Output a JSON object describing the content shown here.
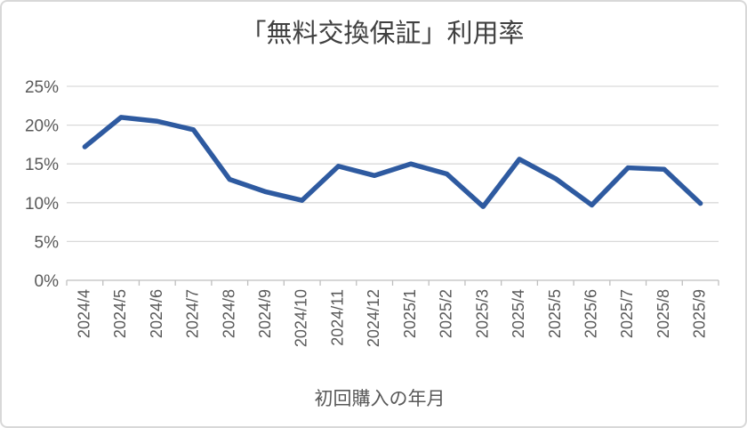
{
  "card": {
    "background": "#ffffff",
    "border_color": "#d8d8d8"
  },
  "chart_data": {
    "type": "line",
    "title": "「無料交換保証」利用率",
    "xlabel": "初回購入の年月",
    "ylabel": "",
    "categories": [
      "2024/4",
      "2024/5",
      "2024/6",
      "2024/7",
      "2024/8",
      "2024/9",
      "2024/10",
      "2024/11",
      "2024/12",
      "2025/1",
      "2025/2",
      "2025/3",
      "2025/4",
      "2025/5",
      "2025/6",
      "2025/7",
      "2025/8",
      "2025/9"
    ],
    "series": [
      {
        "name": "利用率",
        "values": [
          17.2,
          21.0,
          20.5,
          19.4,
          13.0,
          11.4,
          10.3,
          14.7,
          13.5,
          15.0,
          13.7,
          9.5,
          15.6,
          13.1,
          9.7,
          14.5,
          14.3,
          9.9
        ]
      }
    ],
    "ylim": [
      0,
      25
    ],
    "ytick_step": 5,
    "ytick_suffix": "%",
    "grid": true,
    "legend": "none",
    "x_labels_rotated_deg": -90,
    "line_width": 5.5,
    "colors": {
      "line": "#2e5aa0",
      "grid": "#d9d9d9",
      "axis_line": "#bfbfbf",
      "axis_text": "#595959",
      "title_text": "#404040"
    }
  }
}
